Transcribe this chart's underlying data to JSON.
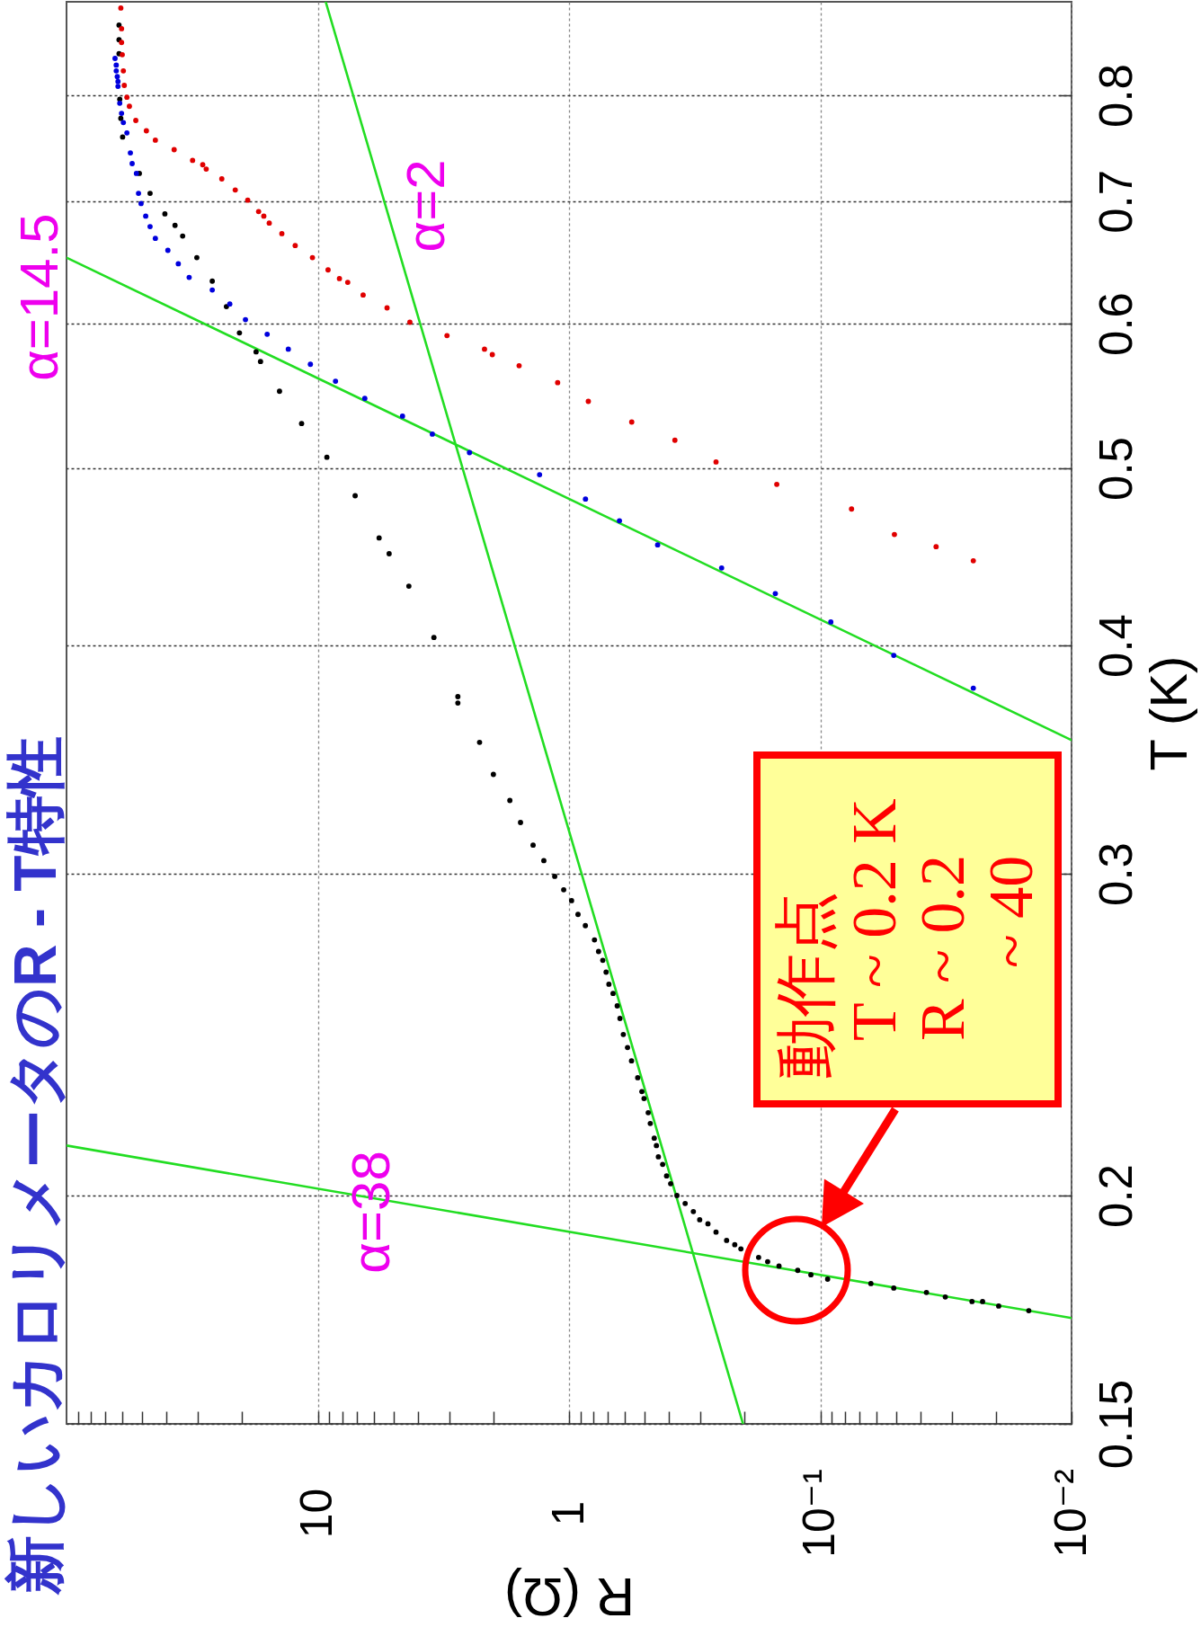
{
  "chart_data": {
    "type": "scatter",
    "title": "新しいカロリメータのR - T特性",
    "xlabel": "R (Ω)",
    "ylabel": "T (K)",
    "log": "xy",
    "xlim": [
      100,
      0.01
    ],
    "ylim": [
      0.15,
      0.9
    ],
    "xticks": [
      {
        "value": 0.01,
        "label": "10⁻²"
      },
      {
        "value": 0.02,
        "label": null
      },
      {
        "value": 0.03,
        "label": null
      },
      {
        "value": 0.04,
        "label": null
      },
      {
        "value": 0.05,
        "label": null
      },
      {
        "value": 0.06,
        "label": null
      },
      {
        "value": 0.07,
        "label": null
      },
      {
        "value": 0.08,
        "label": null
      },
      {
        "value": 0.09,
        "label": null
      },
      {
        "value": 0.1,
        "label": "10⁻¹"
      },
      {
        "value": 0.2,
        "label": null
      },
      {
        "value": 0.3,
        "label": null
      },
      {
        "value": 0.4,
        "label": null
      },
      {
        "value": 0.5,
        "label": null
      },
      {
        "value": 0.6,
        "label": null
      },
      {
        "value": 0.7,
        "label": null
      },
      {
        "value": 0.8,
        "label": null
      },
      {
        "value": 0.9,
        "label": null
      },
      1,
      {
        "value": 2,
        "label": null
      },
      {
        "value": 3,
        "label": null
      },
      {
        "value": 4,
        "label": null
      },
      {
        "value": 5,
        "label": null
      },
      {
        "value": 6,
        "label": null
      },
      {
        "value": 7,
        "label": null
      },
      {
        "value": 8,
        "label": null
      },
      {
        "value": 9,
        "label": null
      },
      10,
      {
        "value": 20,
        "label": null
      },
      {
        "value": 30,
        "label": null
      },
      {
        "value": 40,
        "label": null
      },
      {
        "value": 50,
        "label": null
      },
      {
        "value": 60,
        "label": null
      },
      {
        "value": 70,
        "label": null
      },
      {
        "value": 80,
        "label": null
      },
      {
        "value": 90,
        "label": null
      }
    ],
    "yticks": [
      0.15,
      0.2,
      0.3,
      0.4,
      0.5,
      0.6,
      0.7,
      0.8
    ],
    "grid": true,
    "marker": "circle",
    "series": [
      {
        "type": "scatter",
        "color": "#000000",
        "values": [
          0.874,
          0.858,
          0.843,
          0.796,
          0.777,
          0.759,
          0.725,
          0.707,
          0.689,
          0.679,
          0.67,
          0.652,
          0.633,
          0.613,
          0.593,
          0.579,
          0.572,
          0.551,
          0.529,
          0.507,
          0.483,
          0.458,
          0.449,
          0.431,
          0.404,
          0.375,
          0.372,
          0.354,
          0.34,
          0.329,
          0.32,
          0.311,
          0.305,
          0.299,
          0.294,
          0.29,
          0.285,
          0.281,
          0.276,
          0.272,
          0.269,
          0.265,
          0.261,
          0.258,
          0.254,
          0.25,
          0.245,
          0.241,
          0.237,
          0.232,
          0.228,
          0.226,
          0.222,
          0.219,
          0.215,
          0.213,
          0.21,
          0.208,
          0.205,
          0.203,
          0.2,
          0.198,
          0.196,
          0.194,
          0.193,
          0.191,
          0.189,
          0.188,
          0.187,
          0.185,
          0.184,
          0.183,
          0.182,
          0.181,
          0.18,
          0.179,
          0.178,
          0.177,
          0.176,
          0.175,
          0.175,
          0.174,
          0.173
        ],
        "x": [
          61.8,
          61.8,
          61.8,
          61.4,
          60.8,
          59.8,
          51.3,
          46.5,
          40.6,
          37.0,
          34.5,
          30.3,
          26.3,
          23.1,
          20.5,
          17.6,
          16.9,
          14.2,
          11.6,
          9.2,
          7.1,
          5.7,
          5.2,
          4.34,
          3.45,
          2.77,
          2.77,
          2.27,
          2.0,
          1.72,
          1.56,
          1.39,
          1.26,
          1.14,
          1.05,
          0.977,
          0.921,
          0.861,
          0.792,
          0.763,
          0.734,
          0.712,
          0.694,
          0.668,
          0.643,
          0.627,
          0.608,
          0.585,
          0.564,
          0.533,
          0.513,
          0.503,
          0.484,
          0.475,
          0.458,
          0.449,
          0.441,
          0.424,
          0.409,
          0.394,
          0.372,
          0.345,
          0.32,
          0.302,
          0.28,
          0.26,
          0.236,
          0.219,
          0.207,
          0.176,
          0.162,
          0.146,
          0.123,
          0.109,
          0.0935,
          0.0629,
          0.051,
          0.0378,
          0.0318,
          0.0249,
          0.0226,
          0.0195,
          0.0148
        ]
      },
      {
        "type": "scatter",
        "color": "#0000dd",
        "values": [
          0.838,
          0.831,
          0.825,
          0.819,
          0.814,
          0.809,
          0.792,
          0.782,
          0.773,
          0.763,
          0.744,
          0.734,
          0.725,
          0.707,
          0.698,
          0.687,
          0.678,
          0.668,
          0.658,
          0.647,
          0.636,
          0.626,
          0.615,
          0.603,
          0.592,
          0.581,
          0.57,
          0.558,
          0.546,
          0.534,
          0.522,
          0.51,
          0.496,
          0.481,
          0.468,
          0.454,
          0.441,
          0.427,
          0.412,
          0.395,
          0.379
        ],
        "x": [
          64.1,
          63.4,
          63.4,
          62.8,
          62.4,
          62.4,
          61.4,
          60.4,
          59.4,
          57.5,
          55.7,
          54.8,
          52.7,
          51.7,
          50.5,
          48.4,
          46.5,
          44.3,
          39.5,
          35.9,
          32.5,
          26.3,
          22.4,
          19.4,
          15.9,
          13.1,
          10.7,
          8.5,
          6.5,
          4.6,
          3.5,
          2.49,
          1.31,
          0.86,
          0.63,
          0.444,
          0.247,
          0.151,
          0.0908,
          0.051,
          0.0246
        ]
      },
      {
        "type": "scatter",
        "color": "#e00000",
        "values": [
          0.893,
          0.87,
          0.855,
          0.842,
          0.825,
          0.81,
          0.798,
          0.789,
          0.775,
          0.765,
          0.756,
          0.747,
          0.737,
          0.733,
          0.729,
          0.72,
          0.71,
          0.701,
          0.691,
          0.687,
          0.681,
          0.672,
          0.662,
          0.652,
          0.642,
          0.635,
          0.632,
          0.622,
          0.612,
          0.601,
          0.591,
          0.581,
          0.577,
          0.569,
          0.557,
          0.544,
          0.53,
          0.518,
          0.504,
          0.49,
          0.475,
          0.46,
          0.453,
          0.445
        ],
        "x": [
          60.8,
          60.4,
          60.4,
          60.0,
          59.4,
          58.9,
          57.5,
          56.2,
          53.0,
          48.1,
          44.3,
          37.3,
          31.5,
          28.7,
          27.8,
          24.1,
          21.3,
          19.0,
          17.2,
          16.4,
          15.6,
          13.9,
          12.3,
          10.5,
          9.1,
          8.2,
          7.6,
          6.6,
          5.3,
          4.3,
          3.06,
          2.17,
          2.02,
          1.58,
          1.11,
          0.838,
          0.563,
          0.379,
          0.26,
          0.149,
          0.0751,
          0.0507,
          0.0346,
          0.0246
        ]
      },
      {
        "type": "line",
        "name": "α=38",
        "color": "#22dd22",
        "marker": "none",
        "x": [
          100,
          0.01
        ],
        "values": [
          0.213,
          0.1714
        ]
      },
      {
        "type": "line",
        "name": "α=14.5",
        "color": "#22dd22",
        "marker": "none",
        "x": [
          100,
          0.01
        ],
        "values": [
          0.652,
          0.355
        ]
      },
      {
        "type": "line",
        "name": "α=2",
        "color": "#22dd22",
        "marker": "none",
        "x": [
          9.3,
          0.203
        ],
        "values": [
          0.9,
          0.15
        ]
      }
    ],
    "annotations": [
      "動作点\nT ~ 0.2 K\nR ~ 0.2\n~ 40"
    ]
  }
}
